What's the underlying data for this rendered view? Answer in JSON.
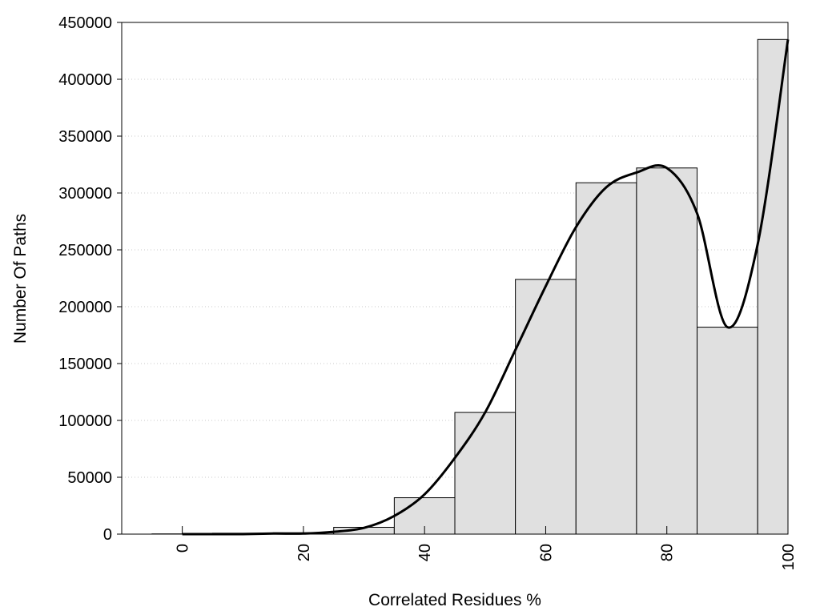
{
  "chart_data": {
    "type": "bar",
    "title": "",
    "xlabel": "Correlated Residues %",
    "ylabel": "Number Of Paths",
    "xlim": [
      -10,
      100
    ],
    "ylim": [
      0,
      450000
    ],
    "grid": "horizontal dotted",
    "legend": "none",
    "x_ticks": [
      "0",
      "20",
      "40",
      "60",
      "80",
      "100"
    ],
    "y_ticks": [
      "0",
      "50000",
      "100000",
      "150000",
      "200000",
      "250000",
      "300000",
      "350000",
      "400000",
      "450000"
    ],
    "x": [
      0,
      10,
      20,
      30,
      40,
      50,
      60,
      70,
      80,
      90,
      100
    ],
    "values": [
      200,
      800,
      1200,
      6000,
      32000,
      107000,
      224000,
      309000,
      322000,
      182000,
      435000
    ],
    "bar_width": 10,
    "bar_color": "#e0e0e0",
    "series": [
      {
        "type": "line",
        "x": [
          0,
          5,
          10,
          15,
          20,
          25,
          30,
          35,
          40,
          45,
          50,
          55,
          60,
          65,
          70,
          75,
          80,
          85,
          90,
          95,
          100
        ],
        "values": [
          0,
          0,
          0,
          500,
          500,
          2000,
          5500,
          16000,
          35000,
          67000,
          107000,
          162000,
          218000,
          270000,
          305000,
          318000,
          322000,
          282000,
          182000,
          255000,
          435000
        ],
        "color": "#000000"
      }
    ]
  }
}
